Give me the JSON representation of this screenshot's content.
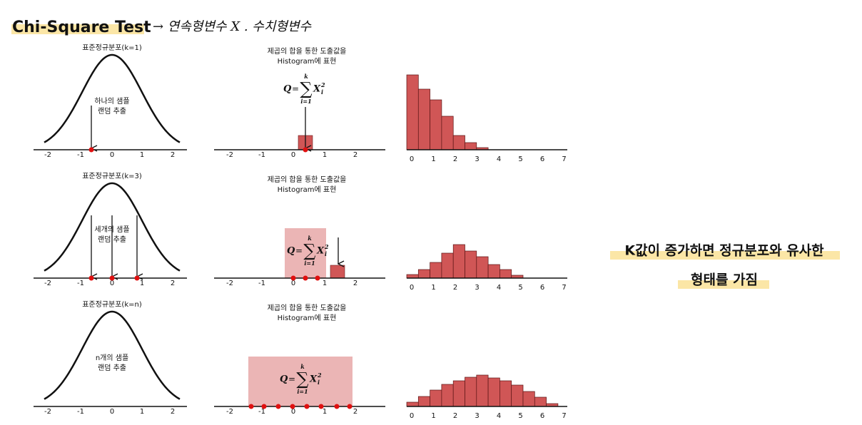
{
  "title": "Chi-Square Test",
  "annotation": "→ 연속형변수 X  . 수치형변수",
  "normal_ticks": [
    "-2",
    "-1",
    "0",
    "1",
    "2"
  ],
  "middle_ticks": [
    "-2",
    "-1",
    "0",
    "1",
    "2"
  ],
  "histogram_ticks": [
    "0",
    "1",
    "2",
    "3",
    "4",
    "5",
    "6",
    "7"
  ],
  "formula": {
    "lhs": "Q",
    "eq": "=",
    "sum": "∑",
    "upper": "k",
    "lower": "i=1",
    "var": "X",
    "sub": "i",
    "sup": "2"
  },
  "rows": [
    {
      "normal_title": "표준정규분포(k=1)",
      "sample_label": [
        "하나의 샘플",
        "랜덤 추출"
      ],
      "histogram_title": [
        "제곱의 합을 통한 도출값을",
        "Histogram에 표현"
      ],
      "histogram": [
        105,
        85,
        70,
        47,
        20,
        10,
        3
      ]
    },
    {
      "normal_title": "표준정규분포(k=3)",
      "sample_label": [
        "세개의 샘플",
        "랜덤 추출"
      ],
      "histogram_title": [
        "제곱의 합을 통한 도출값을",
        "Histogram에 표현"
      ],
      "histogram": [
        5,
        12,
        22,
        35,
        47,
        38,
        30,
        19,
        12,
        4
      ]
    },
    {
      "normal_title": "표준정규분포(k=n)",
      "sample_label": [
        "n개의 샘플",
        "랜덤 추출"
      ],
      "histogram_title": [
        "제곱의 합을 통한 도출값을",
        "Histogram에 표현"
      ],
      "histogram": [
        6,
        14,
        23,
        31,
        36,
        41,
        44,
        40,
        36,
        30,
        21,
        13,
        4
      ]
    }
  ],
  "conclusion": [
    "K값이 증가하면 정규분포와 유사한",
    "형태를 가짐"
  ]
}
